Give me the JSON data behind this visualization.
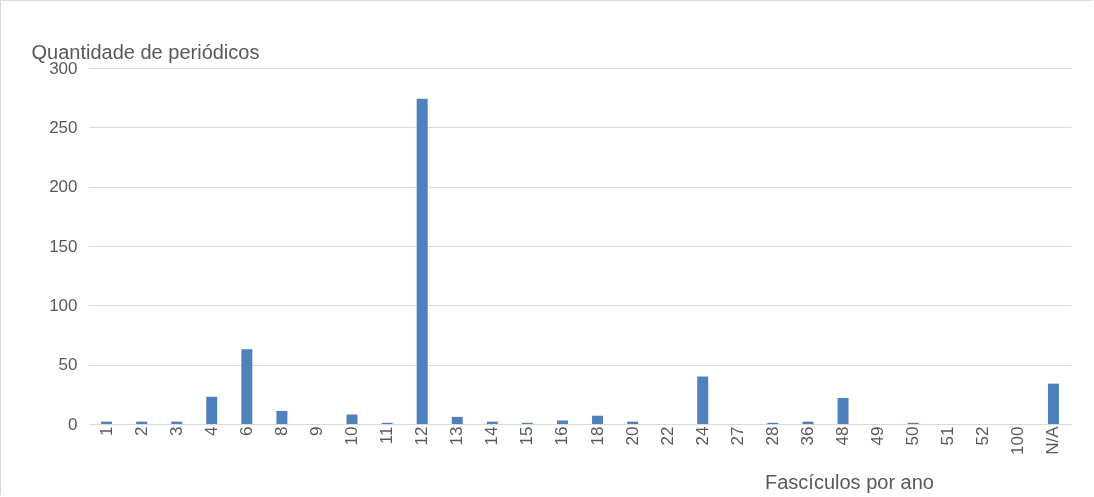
{
  "chart_data": {
    "type": "bar",
    "ylabel": "Quantidade de periódicos",
    "xlabel": "Fascículos por ano",
    "categories": [
      "1",
      "2",
      "3",
      "4",
      "6",
      "8",
      "9",
      "10",
      "11",
      "12",
      "13",
      "14",
      "15",
      "16",
      "18",
      "20",
      "22",
      "24",
      "27",
      "28",
      "36",
      "48",
      "49",
      "50",
      "51",
      "52",
      "100",
      "N/A"
    ],
    "values": [
      2,
      2,
      2,
      23,
      63,
      11,
      0,
      8,
      1,
      274,
      6,
      2,
      1,
      3,
      7,
      2,
      0,
      40,
      0,
      1,
      2,
      22,
      0,
      1,
      0,
      0,
      0,
      34
    ],
    "color": "#4f81bd",
    "ylim": [
      0,
      300
    ],
    "yticks": [
      0,
      50,
      100,
      150,
      200,
      250,
      300
    ],
    "grid": "y"
  }
}
